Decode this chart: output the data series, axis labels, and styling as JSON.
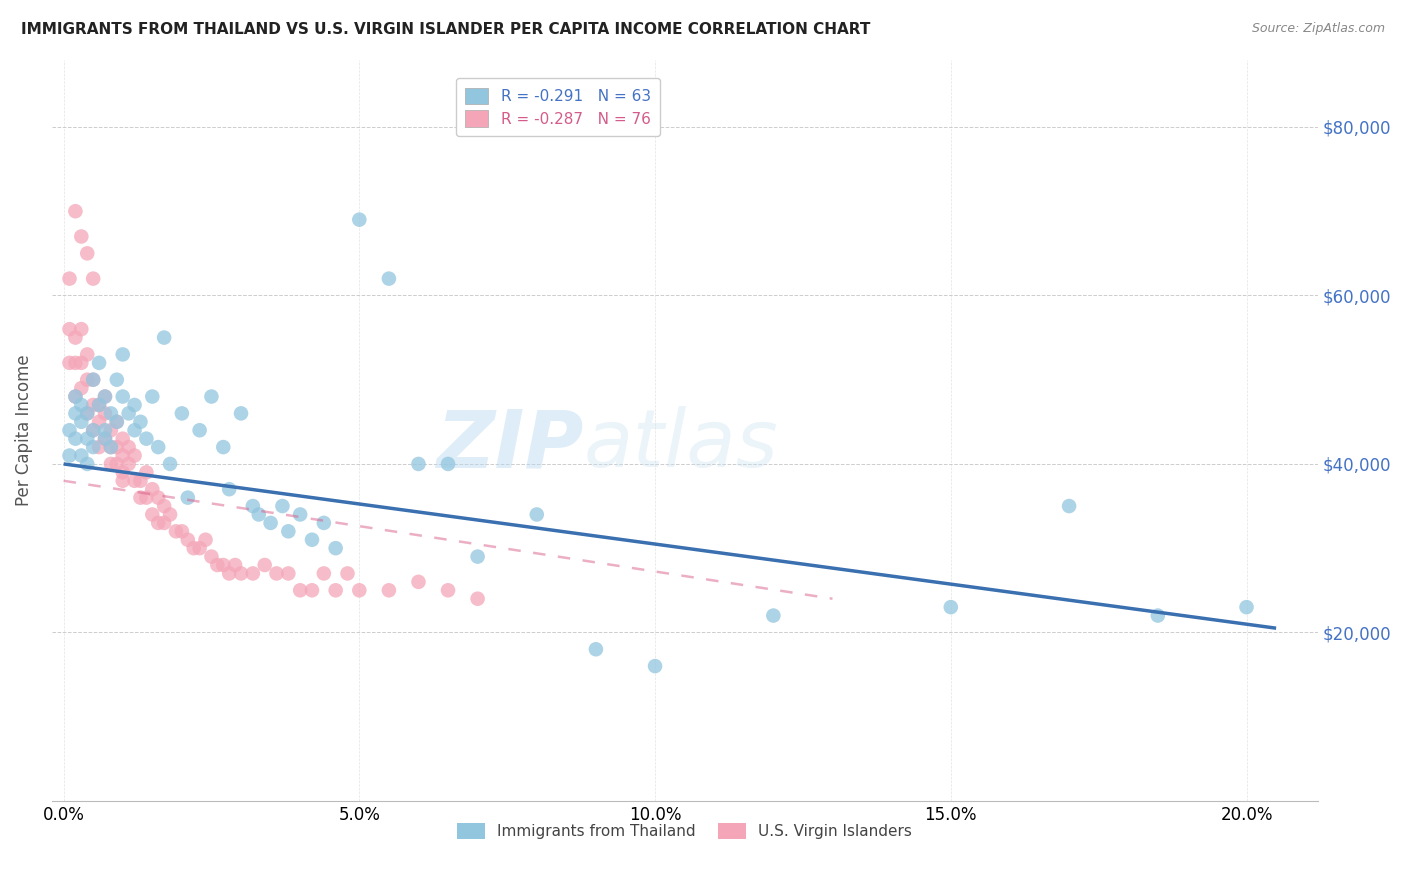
{
  "title": "IMMIGRANTS FROM THAILAND VS U.S. VIRGIN ISLANDER PER CAPITA INCOME CORRELATION CHART",
  "source": "Source: ZipAtlas.com",
  "ylabel": "Per Capita Income",
  "xlabel_ticks": [
    "0.0%",
    "5.0%",
    "10.0%",
    "15.0%",
    "20.0%"
  ],
  "xlabel_vals": [
    0.0,
    0.05,
    0.1,
    0.15,
    0.2
  ],
  "ylabel_ticks": [
    "$20,000",
    "$40,000",
    "$60,000",
    "$80,000"
  ],
  "ylabel_vals": [
    20000,
    40000,
    60000,
    80000
  ],
  "ylim": [
    0,
    88000
  ],
  "xlim": [
    -0.002,
    0.212
  ],
  "legend1_label": "R = -0.291   N = 63",
  "legend2_label": "R = -0.287   N = 76",
  "blue_color": "#92c5de",
  "pink_color": "#f4a6b8",
  "blue_line_color": "#3a6fb0",
  "pink_line_color": "#d95f8a",
  "watermark_zip": "ZIP",
  "watermark_atlas": "atlas",
  "legend_label1": "Immigrants from Thailand",
  "legend_label2": "U.S. Virgin Islanders",
  "blue_scatter_x": [
    0.001,
    0.001,
    0.002,
    0.002,
    0.002,
    0.003,
    0.003,
    0.003,
    0.004,
    0.004,
    0.004,
    0.005,
    0.005,
    0.005,
    0.006,
    0.006,
    0.007,
    0.007,
    0.007,
    0.008,
    0.008,
    0.009,
    0.009,
    0.01,
    0.01,
    0.011,
    0.012,
    0.012,
    0.013,
    0.014,
    0.015,
    0.016,
    0.017,
    0.018,
    0.02,
    0.021,
    0.023,
    0.025,
    0.027,
    0.028,
    0.03,
    0.032,
    0.033,
    0.035,
    0.037,
    0.038,
    0.04,
    0.042,
    0.044,
    0.046,
    0.05,
    0.055,
    0.06,
    0.065,
    0.07,
    0.08,
    0.09,
    0.1,
    0.12,
    0.15,
    0.17,
    0.185,
    0.2
  ],
  "blue_scatter_y": [
    44000,
    41000,
    46000,
    43000,
    48000,
    45000,
    41000,
    47000,
    46000,
    43000,
    40000,
    50000,
    44000,
    42000,
    52000,
    47000,
    48000,
    44000,
    43000,
    46000,
    42000,
    50000,
    45000,
    53000,
    48000,
    46000,
    47000,
    44000,
    45000,
    43000,
    48000,
    42000,
    55000,
    40000,
    46000,
    36000,
    44000,
    48000,
    42000,
    37000,
    46000,
    35000,
    34000,
    33000,
    35000,
    32000,
    34000,
    31000,
    33000,
    30000,
    69000,
    62000,
    40000,
    40000,
    29000,
    34000,
    18000,
    16000,
    22000,
    23000,
    35000,
    22000,
    23000
  ],
  "pink_scatter_x": [
    0.001,
    0.001,
    0.001,
    0.002,
    0.002,
    0.002,
    0.003,
    0.003,
    0.003,
    0.004,
    0.004,
    0.004,
    0.005,
    0.005,
    0.005,
    0.006,
    0.006,
    0.006,
    0.007,
    0.007,
    0.007,
    0.008,
    0.008,
    0.008,
    0.009,
    0.009,
    0.009,
    0.01,
    0.01,
    0.01,
    0.011,
    0.011,
    0.012,
    0.012,
    0.013,
    0.013,
    0.014,
    0.014,
    0.015,
    0.015,
    0.016,
    0.016,
    0.017,
    0.017,
    0.018,
    0.019,
    0.02,
    0.021,
    0.022,
    0.023,
    0.024,
    0.025,
    0.026,
    0.027,
    0.028,
    0.029,
    0.03,
    0.032,
    0.034,
    0.036,
    0.038,
    0.04,
    0.042,
    0.044,
    0.046,
    0.048,
    0.05,
    0.055,
    0.06,
    0.065,
    0.07,
    0.002,
    0.003,
    0.004,
    0.005,
    0.01
  ],
  "pink_scatter_y": [
    62000,
    56000,
    52000,
    55000,
    52000,
    48000,
    56000,
    52000,
    49000,
    53000,
    50000,
    46000,
    50000,
    47000,
    44000,
    47000,
    45000,
    42000,
    48000,
    46000,
    43000,
    44000,
    42000,
    40000,
    45000,
    42000,
    40000,
    43000,
    41000,
    39000,
    42000,
    40000,
    41000,
    38000,
    38000,
    36000,
    39000,
    36000,
    37000,
    34000,
    36000,
    33000,
    35000,
    33000,
    34000,
    32000,
    32000,
    31000,
    30000,
    30000,
    31000,
    29000,
    28000,
    28000,
    27000,
    28000,
    27000,
    27000,
    28000,
    27000,
    27000,
    25000,
    25000,
    27000,
    25000,
    27000,
    25000,
    25000,
    26000,
    25000,
    24000,
    70000,
    67000,
    65000,
    62000,
    38000
  ],
  "blue_line_x0": 0.0,
  "blue_line_x1": 0.205,
  "blue_line_y0": 40000,
  "blue_line_y1": 20500,
  "pink_line_x0": 0.0,
  "pink_line_x1": 0.13,
  "pink_line_y0": 38000,
  "pink_line_y1": 24000
}
